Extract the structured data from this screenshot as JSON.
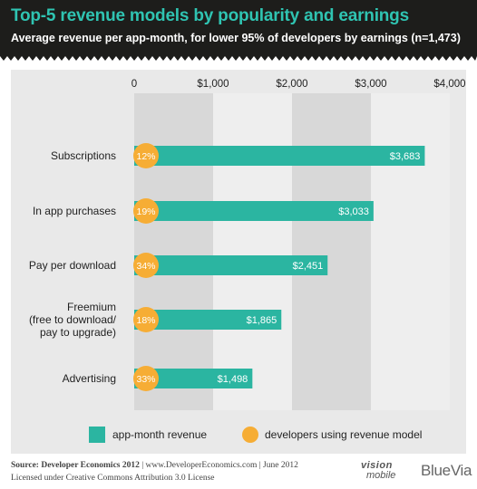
{
  "header": {
    "title": "Top-5 revenue models by popularity and earnings",
    "subtitle": "Average revenue per app-month, for lower 95% of developers by earnings (n=1,473)"
  },
  "colors": {
    "bar": "#2bb5a1",
    "circle": "#f6ad35",
    "band_dark": "#d8d8d8",
    "band_light": "#eeeeee",
    "header_bg": "#1d1d1b",
    "title": "#2fc4b2"
  },
  "chart_data": {
    "type": "bar",
    "orientation": "horizontal",
    "categories": [
      "Subscriptions",
      "In app purchases",
      "Pay per download",
      "Freemium\n(free to download/\npay to upgrade)",
      "Advertising"
    ],
    "series": [
      {
        "name": "app-month revenue",
        "values": [
          3683,
          3033,
          2451,
          1865,
          1498
        ],
        "labels": [
          "$3,683",
          "$3,033",
          "$2,451",
          "$1,865",
          "$1,498"
        ]
      },
      {
        "name": "developers using revenue model",
        "values": [
          12,
          19,
          34,
          18,
          33
        ],
        "labels": [
          "12%",
          "19%",
          "34%",
          "18%",
          "33%"
        ]
      }
    ],
    "xlim": [
      0,
      4000
    ],
    "xticks": [
      0,
      1000,
      2000,
      3000,
      4000
    ],
    "xtick_labels": [
      "0",
      "$1,000",
      "$2,000",
      "$3,000",
      "$4,000"
    ],
    "axis_position": "top",
    "legend_position": "bottom"
  },
  "footer": {
    "source_label": "Source: Developer Economics 2012",
    "source_rest": " | www.DeveloperEconomics.com | June 2012",
    "license": "Licensed under Creative Commons Attribution 3.0 License",
    "logo_vision_top": "vision",
    "logo_vision_bottom": "mobile",
    "logo_bluevia": "BlueVia"
  }
}
